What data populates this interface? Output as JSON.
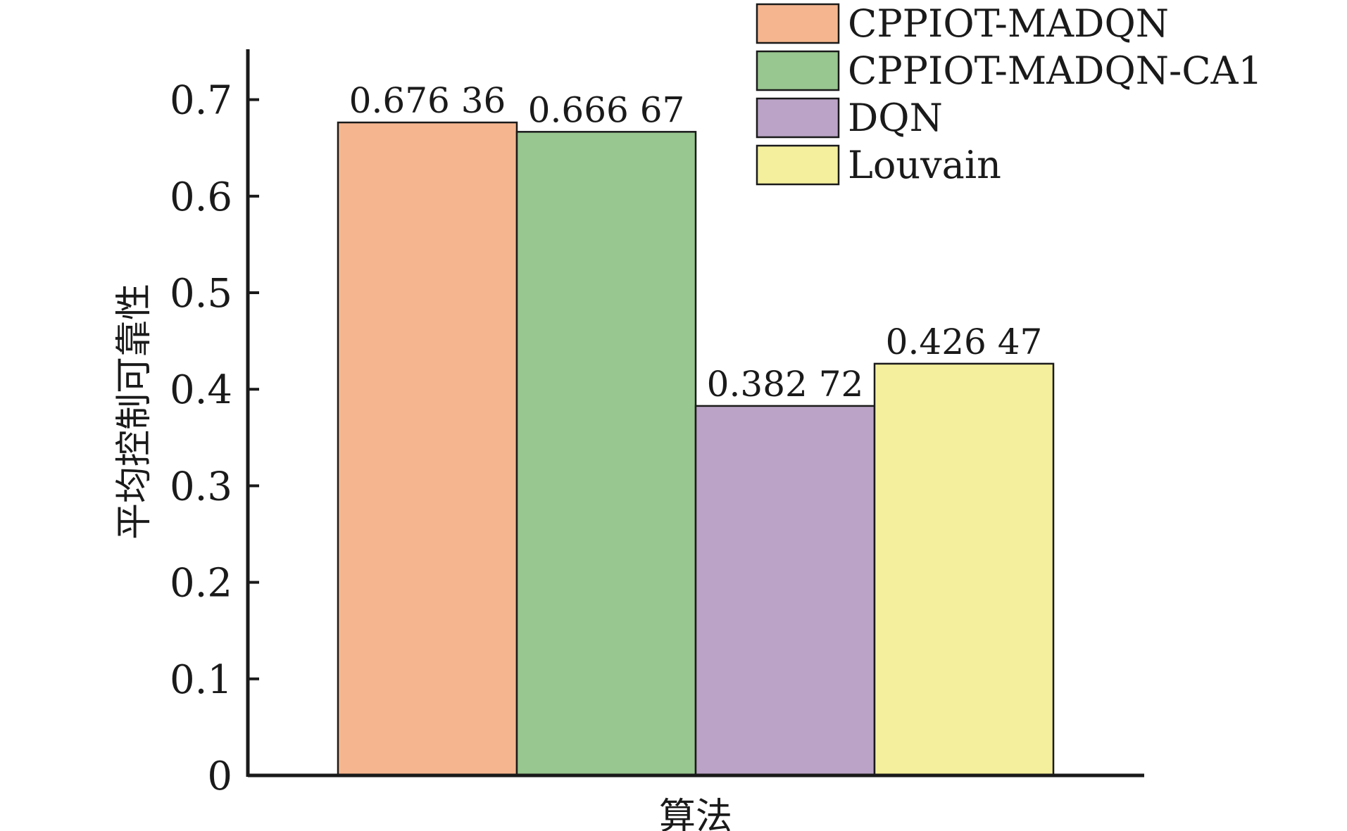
{
  "chart_data": {
    "type": "bar",
    "xlabel": "算法",
    "ylabel": "平均控制可靠性",
    "ylim": [
      0,
      0.75
    ],
    "yticks": [
      0,
      0.1,
      0.2,
      0.3,
      0.4,
      0.5,
      0.6,
      0.7
    ],
    "ytick_labels": [
      "0",
      "0.1",
      "0.2",
      "0.3",
      "0.4",
      "0.5",
      "0.6",
      "0.7"
    ],
    "grid": false,
    "legend_position": "top-right",
    "series": [
      {
        "name": "CPPIOT-MADQN",
        "value": 0.67636,
        "label": "0.676 36",
        "color": "#f5b68f"
      },
      {
        "name": "CPPIOT-MADQN-CA1",
        "value": 0.66667,
        "label": "0.666 67",
        "color": "#98c78f"
      },
      {
        "name": "DQN",
        "value": 0.38272,
        "label": "0.382 72",
        "color": "#baa3c6"
      },
      {
        "name": "Louvain",
        "value": 0.42647,
        "label": "0.426 47",
        "color": "#f4ef9c"
      }
    ]
  }
}
